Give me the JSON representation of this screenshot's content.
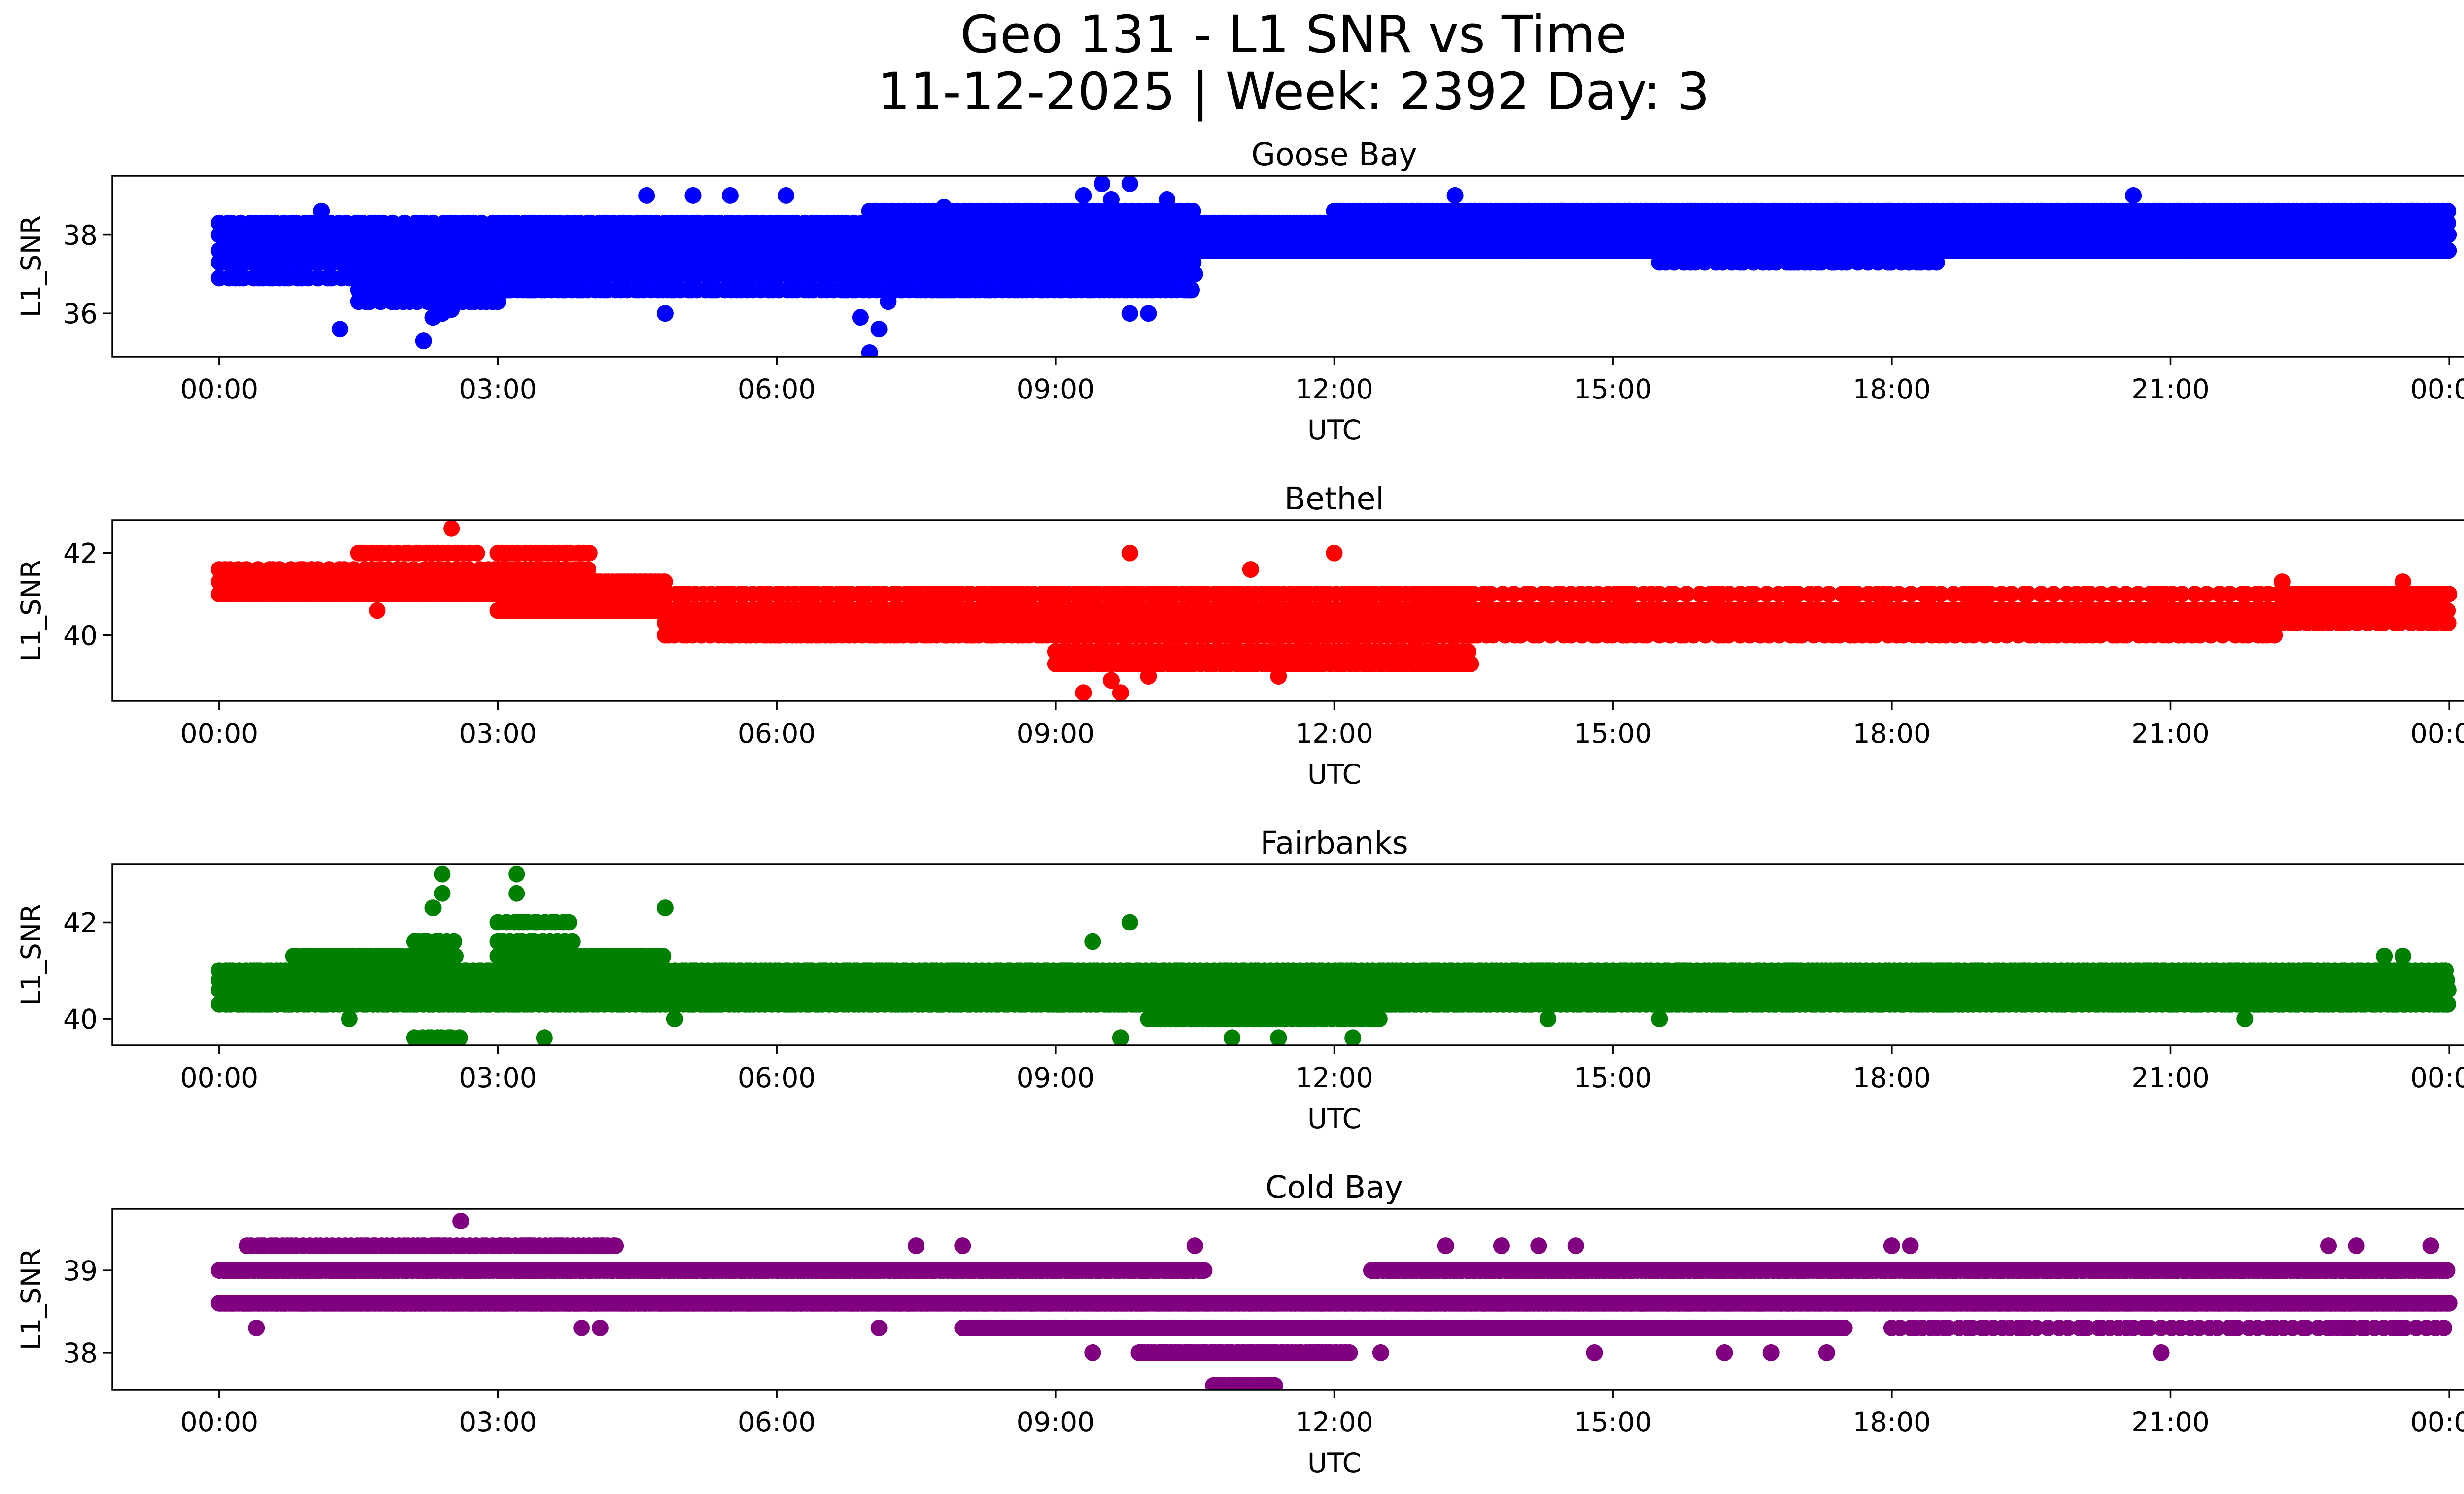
{
  "chart_data": {
    "type": "scatter",
    "title": "Geo 131 - L1 SNR vs Time",
    "subtitle": "11-12-2025 | Week: 2392 Day: 3",
    "xlabel": "UTC",
    "ylabel": "L1_SNR",
    "xlim": [
      -1.15,
      25.15
    ],
    "x_ticks": [
      0,
      3,
      6,
      9,
      12,
      15,
      18,
      21,
      24
    ],
    "x_tick_labels": [
      "00:00",
      "03:00",
      "06:00",
      "09:00",
      "12:00",
      "15:00",
      "18:00",
      "21:00",
      "00:00"
    ],
    "panels": [
      {
        "name": "Goose Bay",
        "color": "#0000ff",
        "ylim": [
          34.9,
          39.5
        ],
        "y_ticks": [
          36,
          38
        ],
        "segments": [
          {
            "x0": 0.0,
            "x1": 1.5,
            "levels": [
              37.3,
              37.6,
              38.0
            ],
            "gap": 0.03
          },
          {
            "x0": 0.0,
            "x1": 1.5,
            "levels": [
              36.9,
              38.3
            ],
            "gap": 0.07
          },
          {
            "x0": 1.5,
            "x1": 3.0,
            "levels": [
              36.6,
              37.0,
              37.3,
              37.6,
              38.0
            ],
            "gap": 0.03
          },
          {
            "x0": 1.5,
            "x1": 3.0,
            "levels": [
              36.3,
              38.3
            ],
            "gap": 0.08
          },
          {
            "x0": 3.0,
            "x1": 7.0,
            "levels": [
              37.0,
              37.3,
              37.6,
              38.0
            ],
            "gap": 0.03
          },
          {
            "x0": 3.0,
            "x1": 7.0,
            "levels": [
              36.6,
              38.3
            ],
            "gap": 0.06
          },
          {
            "x0": 7.0,
            "x1": 10.5,
            "levels": [
              37.3,
              37.6,
              38.0,
              38.3
            ],
            "gap": 0.03
          },
          {
            "x0": 7.0,
            "x1": 10.5,
            "levels": [
              36.6,
              37.0,
              38.6
            ],
            "gap": 0.05
          },
          {
            "x0": 10.5,
            "x1": 24.0,
            "levels": [
              37.6,
              38.0,
              38.3
            ],
            "gap": 0.03
          },
          {
            "x0": 12.0,
            "x1": 24.0,
            "levels": [
              38.6
            ],
            "gap": 0.04
          },
          {
            "x0": 15.5,
            "x1": 18.5,
            "levels": [
              37.3
            ],
            "gap": 0.08
          }
        ],
        "outliers": [
          [
            1.3,
            35.6
          ],
          [
            2.2,
            35.3
          ],
          [
            2.3,
            35.9
          ],
          [
            2.4,
            36.0
          ],
          [
            2.5,
            36.1
          ],
          [
            4.6,
            39.0
          ],
          [
            4.8,
            36.0
          ],
          [
            5.1,
            39.0
          ],
          [
            5.5,
            39.0
          ],
          [
            6.1,
            39.0
          ],
          [
            6.9,
            35.9
          ],
          [
            7.0,
            35.0
          ],
          [
            7.1,
            35.6
          ],
          [
            7.2,
            36.3
          ],
          [
            7.8,
            38.7
          ],
          [
            9.3,
            39.0
          ],
          [
            9.5,
            39.3
          ],
          [
            9.6,
            38.9
          ],
          [
            9.8,
            39.3
          ],
          [
            9.8,
            36.0
          ],
          [
            10.0,
            36.0
          ],
          [
            10.2,
            38.9
          ],
          [
            13.3,
            39.0
          ],
          [
            20.6,
            39.0
          ],
          [
            1.1,
            38.6
          ]
        ]
      },
      {
        "name": "Bethel",
        "color": "#ff0000",
        "ylim": [
          38.4,
          42.8
        ],
        "y_ticks": [
          40,
          42
        ],
        "segments": [
          {
            "x0": 0.0,
            "x1": 3.0,
            "levels": [
              41.0,
              41.3
            ],
            "gap": 0.03
          },
          {
            "x0": 0.0,
            "x1": 3.0,
            "levels": [
              41.6
            ],
            "gap": 0.08
          },
          {
            "x0": 1.5,
            "x1": 2.8,
            "levels": [
              42.0
            ],
            "gap": 0.06
          },
          {
            "x0": 3.0,
            "x1": 4.8,
            "levels": [
              41.0,
              41.3,
              40.6
            ],
            "gap": 0.03
          },
          {
            "x0": 3.0,
            "x1": 4.0,
            "levels": [
              41.6,
              42.0
            ],
            "gap": 0.06
          },
          {
            "x0": 4.8,
            "x1": 9.0,
            "levels": [
              40.6,
              40.3
            ],
            "gap": 0.03
          },
          {
            "x0": 4.8,
            "x1": 9.0,
            "levels": [
              41.0,
              40.0
            ],
            "gap": 0.06
          },
          {
            "x0": 9.0,
            "x1": 13.5,
            "levels": [
              40.0,
              40.3,
              40.6
            ],
            "gap": 0.03
          },
          {
            "x0": 9.0,
            "x1": 13.5,
            "levels": [
              39.6,
              41.0,
              39.3
            ],
            "gap": 0.05
          },
          {
            "x0": 13.5,
            "x1": 22.2,
            "levels": [
              40.3,
              40.6
            ],
            "gap": 0.03
          },
          {
            "x0": 13.5,
            "x1": 22.2,
            "levels": [
              40.0,
              41.0
            ],
            "gap": 0.09
          },
          {
            "x0": 22.2,
            "x1": 24.0,
            "levels": [
              40.6,
              41.0
            ],
            "gap": 0.03
          },
          {
            "x0": 22.2,
            "x1": 24.0,
            "levels": [
              40.3
            ],
            "gap": 0.08
          }
        ],
        "outliers": [
          [
            2.5,
            42.6
          ],
          [
            1.7,
            40.6
          ],
          [
            9.3,
            38.6
          ],
          [
            9.7,
            38.6
          ],
          [
            9.8,
            42.0
          ],
          [
            11.1,
            41.6
          ],
          [
            12.0,
            42.0
          ],
          [
            11.4,
            39.0
          ],
          [
            9.6,
            38.9
          ],
          [
            22.2,
            41.3
          ],
          [
            23.5,
            41.3
          ],
          [
            23.8,
            40.3
          ],
          [
            10.0,
            39.0
          ]
        ]
      },
      {
        "name": "Fairbanks",
        "color": "#008000",
        "ylim": [
          39.45,
          43.2
        ],
        "y_ticks": [
          40,
          42
        ],
        "segments": [
          {
            "x0": 0.0,
            "x1": 24.0,
            "levels": [
              40.6,
              40.8
            ],
            "gap": 0.025
          },
          {
            "x0": 0.0,
            "x1": 24.0,
            "levels": [
              41.0,
              40.3
            ],
            "gap": 0.05
          },
          {
            "x0": 0.8,
            "x1": 2.6,
            "levels": [
              41.3
            ],
            "gap": 0.05
          },
          {
            "x0": 3.0,
            "x1": 4.8,
            "levels": [
              41.3
            ],
            "gap": 0.05
          },
          {
            "x0": 10.0,
            "x1": 12.5,
            "levels": [
              40.0
            ],
            "gap": 0.05
          },
          {
            "x0": 2.1,
            "x1": 2.6,
            "levels": [
              41.6,
              39.6
            ],
            "gap": 0.06
          },
          {
            "x0": 3.0,
            "x1": 3.8,
            "levels": [
              41.6,
              42.0
            ],
            "gap": 0.06
          }
        ],
        "outliers": [
          [
            2.3,
            42.3
          ],
          [
            2.4,
            42.6
          ],
          [
            2.4,
            43.0
          ],
          [
            3.2,
            42.6
          ],
          [
            3.2,
            43.0
          ],
          [
            4.8,
            42.3
          ],
          [
            4.9,
            40.0
          ],
          [
            3.5,
            39.6
          ],
          [
            9.8,
            42.0
          ],
          [
            9.4,
            41.6
          ],
          [
            9.7,
            39.6
          ],
          [
            10.9,
            39.6
          ],
          [
            11.4,
            39.6
          ],
          [
            12.2,
            39.6
          ],
          [
            21.8,
            40.0
          ],
          [
            14.3,
            40.0
          ],
          [
            15.5,
            40.0
          ],
          [
            23.3,
            41.3
          ],
          [
            23.5,
            41.3
          ],
          [
            1.4,
            40.0
          ]
        ]
      },
      {
        "name": "Cold Bay",
        "color": "#800080",
        "ylim": [
          37.55,
          39.75
        ],
        "y_ticks": [
          38,
          39
        ],
        "segments": [
          {
            "x0": 0.0,
            "x1": 24.0,
            "levels": [
              38.6
            ],
            "gap": 0.02
          },
          {
            "x0": 0.0,
            "x1": 10.6,
            "levels": [
              39.0
            ],
            "gap": 0.03
          },
          {
            "x0": 12.4,
            "x1": 24.0,
            "levels": [
              39.0
            ],
            "gap": 0.03
          },
          {
            "x0": 8.0,
            "x1": 17.5,
            "levels": [
              38.3
            ],
            "gap": 0.03
          },
          {
            "x0": 18.0,
            "x1": 24.0,
            "levels": [
              38.3
            ],
            "gap": 0.08
          },
          {
            "x0": 0.3,
            "x1": 4.3,
            "levels": [
              39.3
            ],
            "gap": 0.05
          },
          {
            "x0": 9.9,
            "x1": 12.2,
            "levels": [
              38.0
            ],
            "gap": 0.03
          },
          {
            "x0": 10.7,
            "x1": 11.4,
            "levels": [
              37.6
            ],
            "gap": 0.03
          }
        ],
        "outliers": [
          [
            2.6,
            39.6
          ],
          [
            0.4,
            38.3
          ],
          [
            3.9,
            38.3
          ],
          [
            4.1,
            38.3
          ],
          [
            7.1,
            38.3
          ],
          [
            9.4,
            38.0
          ],
          [
            12.5,
            38.0
          ],
          [
            14.8,
            38.0
          ],
          [
            16.2,
            38.0
          ],
          [
            16.7,
            38.0
          ],
          [
            17.3,
            38.0
          ],
          [
            20.9,
            38.0
          ],
          [
            13.2,
            39.3
          ],
          [
            13.8,
            39.3
          ],
          [
            14.2,
            39.3
          ],
          [
            14.6,
            39.3
          ],
          [
            18.0,
            39.3
          ],
          [
            18.2,
            39.3
          ],
          [
            22.7,
            39.3
          ],
          [
            23.0,
            39.3
          ],
          [
            23.8,
            39.3
          ],
          [
            10.5,
            39.3
          ],
          [
            7.5,
            39.3
          ],
          [
            8.0,
            39.3
          ]
        ]
      }
    ]
  }
}
